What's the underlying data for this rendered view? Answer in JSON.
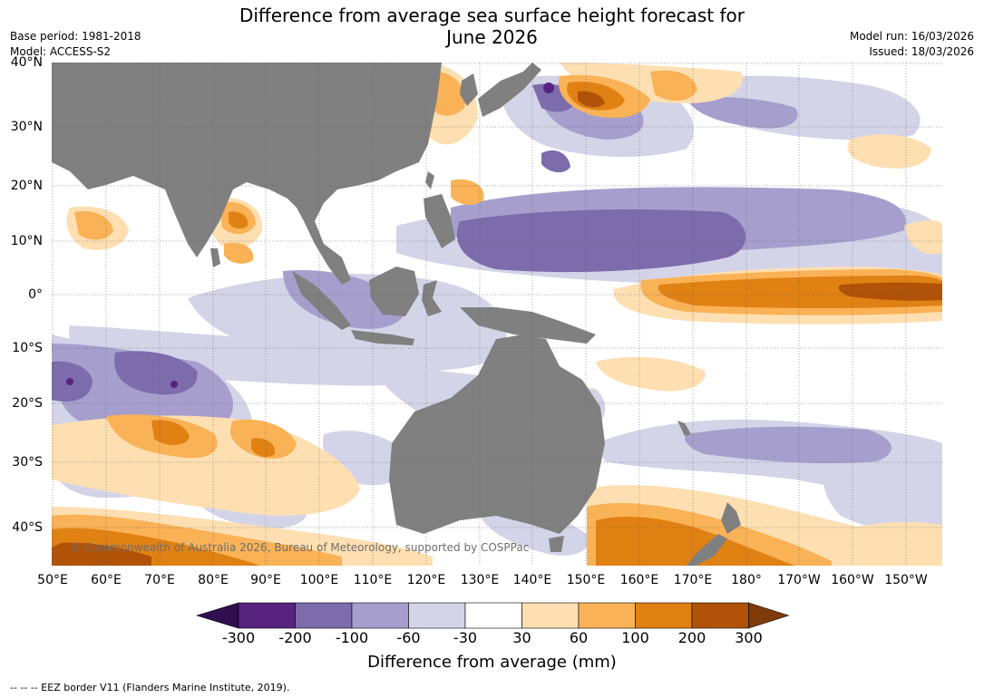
{
  "title_line1": "Difference from average sea surface height forecast for",
  "title_line2": "June 2026",
  "base_period": "Base period: 1981-2018",
  "model": "Model: ACCESS-S2",
  "model_run": "Model run: 16/03/2026",
  "issued": "Issued: 18/03/2026",
  "lat_labels": [
    "40°N",
    "30°N",
    "20°N",
    "10°N",
    "0°",
    "10°S",
    "20°S",
    "30°S",
    "40°S"
  ],
  "lon_labels": [
    "50°E",
    "60°E",
    "70°E",
    "80°E",
    "90°E",
    "100°E",
    "110°E",
    "120°E",
    "130°E",
    "140°E",
    "150°E",
    "160°E",
    "170°E",
    "180°",
    "170°W",
    "160°W",
    "150°W"
  ],
  "colorbar": {
    "ticks": [
      "-300",
      "-200",
      "-100",
      "-60",
      "-30",
      "30",
      "60",
      "100",
      "200",
      "300"
    ],
    "colors": [
      "#2f0f4f",
      "#57237f",
      "#7c6cab",
      "#a69fcd",
      "#d4d4e8",
      "#ffffff",
      "#fedfb2",
      "#f9b256",
      "#e08114",
      "#b05308",
      "#7f3b0a"
    ],
    "label": "Difference from average (mm)"
  },
  "copyright": "© Commonwealth of Australia 2026, Bureau of Meteorology, supported by COSPPac",
  "footnote": "--  --  -- EEZ border V11 (Flanders Marine Institute, 2019).",
  "colors": {
    "land": "#808080",
    "ocean": "#ffffff",
    "grid": "#555555"
  }
}
